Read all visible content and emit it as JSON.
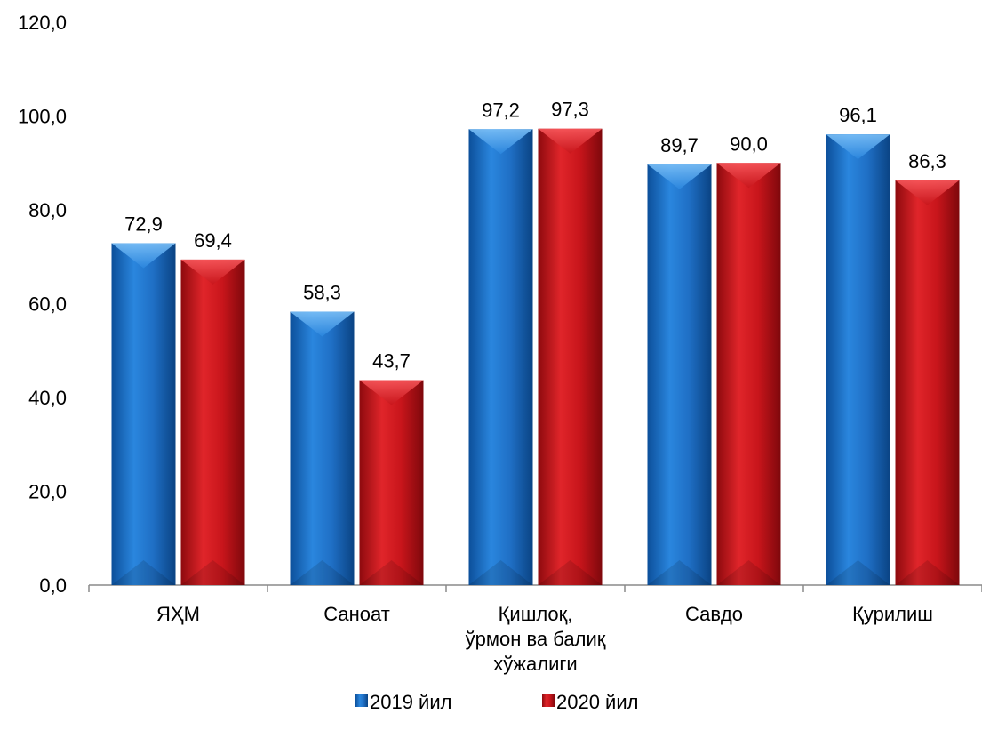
{
  "chart_data": {
    "type": "bar",
    "categories": [
      [
        "ЯҲМ"
      ],
      [
        "Саноат"
      ],
      [
        "Қишлоқ,",
        "ўрмон ва балиқ",
        "хўжалиги"
      ],
      [
        "Савдо"
      ],
      [
        "Қурилиш"
      ]
    ],
    "series": [
      {
        "name": "2019 йил",
        "values": [
          72.9,
          58.3,
          97.2,
          89.7,
          96.1
        ],
        "labels": [
          "72,9",
          "58,3",
          "97,2",
          "89,7",
          "96,1"
        ],
        "color": "#1F6FC5"
      },
      {
        "name": "2020 йил",
        "values": [
          69.4,
          43.7,
          97.3,
          90.0,
          86.3
        ],
        "labels": [
          "69,4",
          "43,7",
          "97,3",
          "90,0",
          "86,3"
        ],
        "color": "#C8151B"
      }
    ],
    "ylim": [
      0,
      120
    ],
    "yticks": [
      0,
      20,
      40,
      60,
      80,
      100,
      120
    ],
    "ytick_labels": [
      "0,0",
      "20,0",
      "40,0",
      "60,0",
      "80,0",
      "100,0",
      "120,0"
    ],
    "grid": false,
    "legend": "bottom"
  }
}
